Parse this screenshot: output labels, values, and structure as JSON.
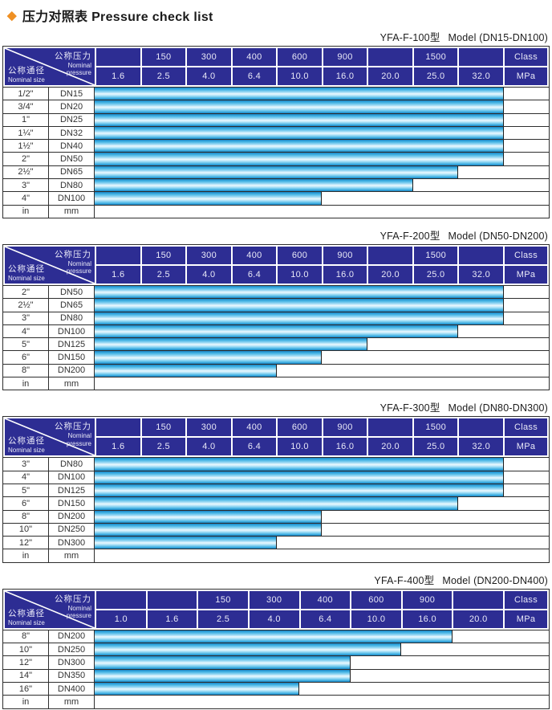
{
  "title": {
    "diamond": "◆",
    "text": "压力对照表 Pressure check list"
  },
  "header_labels": {
    "nominal_pressure_zh": "公称压力",
    "nominal_pressure_en1": "Nominal",
    "nominal_pressure_en2": "pressure",
    "nominal_size_zh": "公称通径",
    "nominal_size_en": "Nominal size"
  },
  "colors": {
    "header_navy": "#2d2d93",
    "bar_cyan": "#29a8e0",
    "diamond_orange": "#ef9023",
    "border_dark": "#2e2e2e"
  },
  "tables": [
    {
      "model": "YFA-F-100型",
      "model_range": "Model (DN15-DN100)",
      "class_row": [
        "",
        "150",
        "300",
        "400",
        "600",
        "900",
        "",
        "1500",
        "",
        "Class"
      ],
      "mpa_row": [
        "1.6",
        "2.5",
        "4.0",
        "6.4",
        "10.0",
        "16.0",
        "20.0",
        "25.0",
        "32.0",
        "MPa"
      ],
      "rows": [
        {
          "size": "1/2\"",
          "dn": "DN15",
          "bar": 9
        },
        {
          "size": "3/4\"",
          "dn": "DN20",
          "bar": 9
        },
        {
          "size": "1\"",
          "dn": "DN25",
          "bar": 9
        },
        {
          "size": "1¼\"",
          "dn": "DN32",
          "bar": 9
        },
        {
          "size": "1½\"",
          "dn": "DN40",
          "bar": 9
        },
        {
          "size": "2\"",
          "dn": "DN50",
          "bar": 9
        },
        {
          "size": "2½\"",
          "dn": "DN65",
          "bar": 8
        },
        {
          "size": "3\"",
          "dn": "DN80",
          "bar": 7
        },
        {
          "size": "4\"",
          "dn": "DN100",
          "bar": 5
        }
      ],
      "footer": {
        "size": "in",
        "dn": "mm"
      }
    },
    {
      "model": "YFA-F-200型",
      "model_range": "Model (DN50-DN200)",
      "class_row": [
        "",
        "150",
        "300",
        "400",
        "600",
        "900",
        "",
        "1500",
        "",
        "Class"
      ],
      "mpa_row": [
        "1.6",
        "2.5",
        "4.0",
        "6.4",
        "10.0",
        "16.0",
        "20.0",
        "25.0",
        "32.0",
        "MPa"
      ],
      "rows": [
        {
          "size": "2\"",
          "dn": "DN50",
          "bar": 9
        },
        {
          "size": "2½\"",
          "dn": "DN65",
          "bar": 9
        },
        {
          "size": "3\"",
          "dn": "DN80",
          "bar": 9
        },
        {
          "size": "4\"",
          "dn": "DN100",
          "bar": 8
        },
        {
          "size": "5\"",
          "dn": "DN125",
          "bar": 6
        },
        {
          "size": "6\"",
          "dn": "DN150",
          "bar": 5
        },
        {
          "size": "8\"",
          "dn": "DN200",
          "bar": 4
        }
      ],
      "footer": {
        "size": "in",
        "dn": "mm"
      }
    },
    {
      "model": "YFA-F-300型",
      "model_range": "Model (DN80-DN300)",
      "class_row": [
        "",
        "150",
        "300",
        "400",
        "600",
        "900",
        "",
        "1500",
        "",
        "Class"
      ],
      "mpa_row": [
        "1.6",
        "2.5",
        "4.0",
        "6.4",
        "10.0",
        "16.0",
        "20.0",
        "25.0",
        "32.0",
        "MPa"
      ],
      "rows": [
        {
          "size": "3\"",
          "dn": "DN80",
          "bar": 9
        },
        {
          "size": "4\"",
          "dn": "DN100",
          "bar": 9
        },
        {
          "size": "5\"",
          "dn": "DN125",
          "bar": 9
        },
        {
          "size": "6\"",
          "dn": "DN150",
          "bar": 8
        },
        {
          "size": "8\"",
          "dn": "DN200",
          "bar": 5
        },
        {
          "size": "10\"",
          "dn": "DN250",
          "bar": 5
        },
        {
          "size": "12\"",
          "dn": "DN300",
          "bar": 4
        }
      ],
      "footer": {
        "size": "in",
        "dn": "mm"
      }
    },
    {
      "model": "YFA-F-400型",
      "model_range": "Model (DN200-DN400)",
      "class_row": [
        "",
        "",
        "150",
        "300",
        "400",
        "600",
        "900",
        "",
        "Class"
      ],
      "mpa_row": [
        "1.0",
        "1.6",
        "2.5",
        "4.0",
        "6.4",
        "10.0",
        "16.0",
        "20.0",
        "MPa"
      ],
      "rows": [
        {
          "size": "8\"",
          "dn": "DN200",
          "bar": 7
        },
        {
          "size": "10\"",
          "dn": "DN250",
          "bar": 6
        },
        {
          "size": "12\"",
          "dn": "DN300",
          "bar": 5
        },
        {
          "size": "14\"",
          "dn": "DN350",
          "bar": 5
        },
        {
          "size": "16\"",
          "dn": "DN400",
          "bar": 4
        }
      ],
      "footer": {
        "size": "in",
        "dn": "mm"
      }
    }
  ],
  "chart_data": [
    {
      "type": "bar",
      "title": "YFA-F-100型 Model (DN15-DN100)",
      "categories": [
        "DN15",
        "DN20",
        "DN25",
        "DN32",
        "DN40",
        "DN50",
        "DN65",
        "DN80",
        "DN100"
      ],
      "values": [
        32.0,
        32.0,
        32.0,
        32.0,
        32.0,
        32.0,
        25.0,
        20.0,
        10.0
      ],
      "xlabel": "公称压力 Nominal pressure (MPa)",
      "ylabel": "公称通径 Nominal size",
      "mpa_scale": [
        1.6,
        2.5,
        4.0,
        6.4,
        10.0,
        16.0,
        20.0,
        25.0,
        32.0
      ],
      "class_scale": [
        null,
        150,
        300,
        400,
        600,
        900,
        null,
        1500,
        null
      ],
      "legend_position": "none",
      "grid": true
    },
    {
      "type": "bar",
      "title": "YFA-F-200型 Model (DN50-DN200)",
      "categories": [
        "DN50",
        "DN65",
        "DN80",
        "DN100",
        "DN125",
        "DN150",
        "DN200"
      ],
      "values": [
        32.0,
        32.0,
        32.0,
        25.0,
        16.0,
        10.0,
        6.4
      ],
      "xlabel": "公称压力 Nominal pressure (MPa)",
      "ylabel": "公称通径 Nominal size",
      "mpa_scale": [
        1.6,
        2.5,
        4.0,
        6.4,
        10.0,
        16.0,
        20.0,
        25.0,
        32.0
      ],
      "class_scale": [
        null,
        150,
        300,
        400,
        600,
        900,
        null,
        1500,
        null
      ],
      "legend_position": "none",
      "grid": true
    },
    {
      "type": "bar",
      "title": "YFA-F-300型 Model (DN80-DN300)",
      "categories": [
        "DN80",
        "DN100",
        "DN125",
        "DN150",
        "DN200",
        "DN250",
        "DN300"
      ],
      "values": [
        32.0,
        32.0,
        32.0,
        25.0,
        10.0,
        10.0,
        6.4
      ],
      "xlabel": "公称压力 Nominal pressure (MPa)",
      "ylabel": "公称通径 Nominal size",
      "mpa_scale": [
        1.6,
        2.5,
        4.0,
        6.4,
        10.0,
        16.0,
        20.0,
        25.0,
        32.0
      ],
      "class_scale": [
        null,
        150,
        300,
        400,
        600,
        900,
        null,
        1500,
        null
      ],
      "legend_position": "none",
      "grid": true
    },
    {
      "type": "bar",
      "title": "YFA-F-400型 Model (DN200-DN400)",
      "categories": [
        "DN200",
        "DN250",
        "DN300",
        "DN350",
        "DN400"
      ],
      "values": [
        16.0,
        10.0,
        6.4,
        6.4,
        4.0
      ],
      "xlabel": "公称压力 Nominal pressure (MPa)",
      "ylabel": "公称通径 Nominal size",
      "mpa_scale": [
        1.0,
        1.6,
        2.5,
        4.0,
        6.4,
        10.0,
        16.0,
        20.0
      ],
      "class_scale": [
        null,
        null,
        150,
        300,
        400,
        600,
        900,
        null
      ],
      "legend_position": "none",
      "grid": true
    }
  ]
}
